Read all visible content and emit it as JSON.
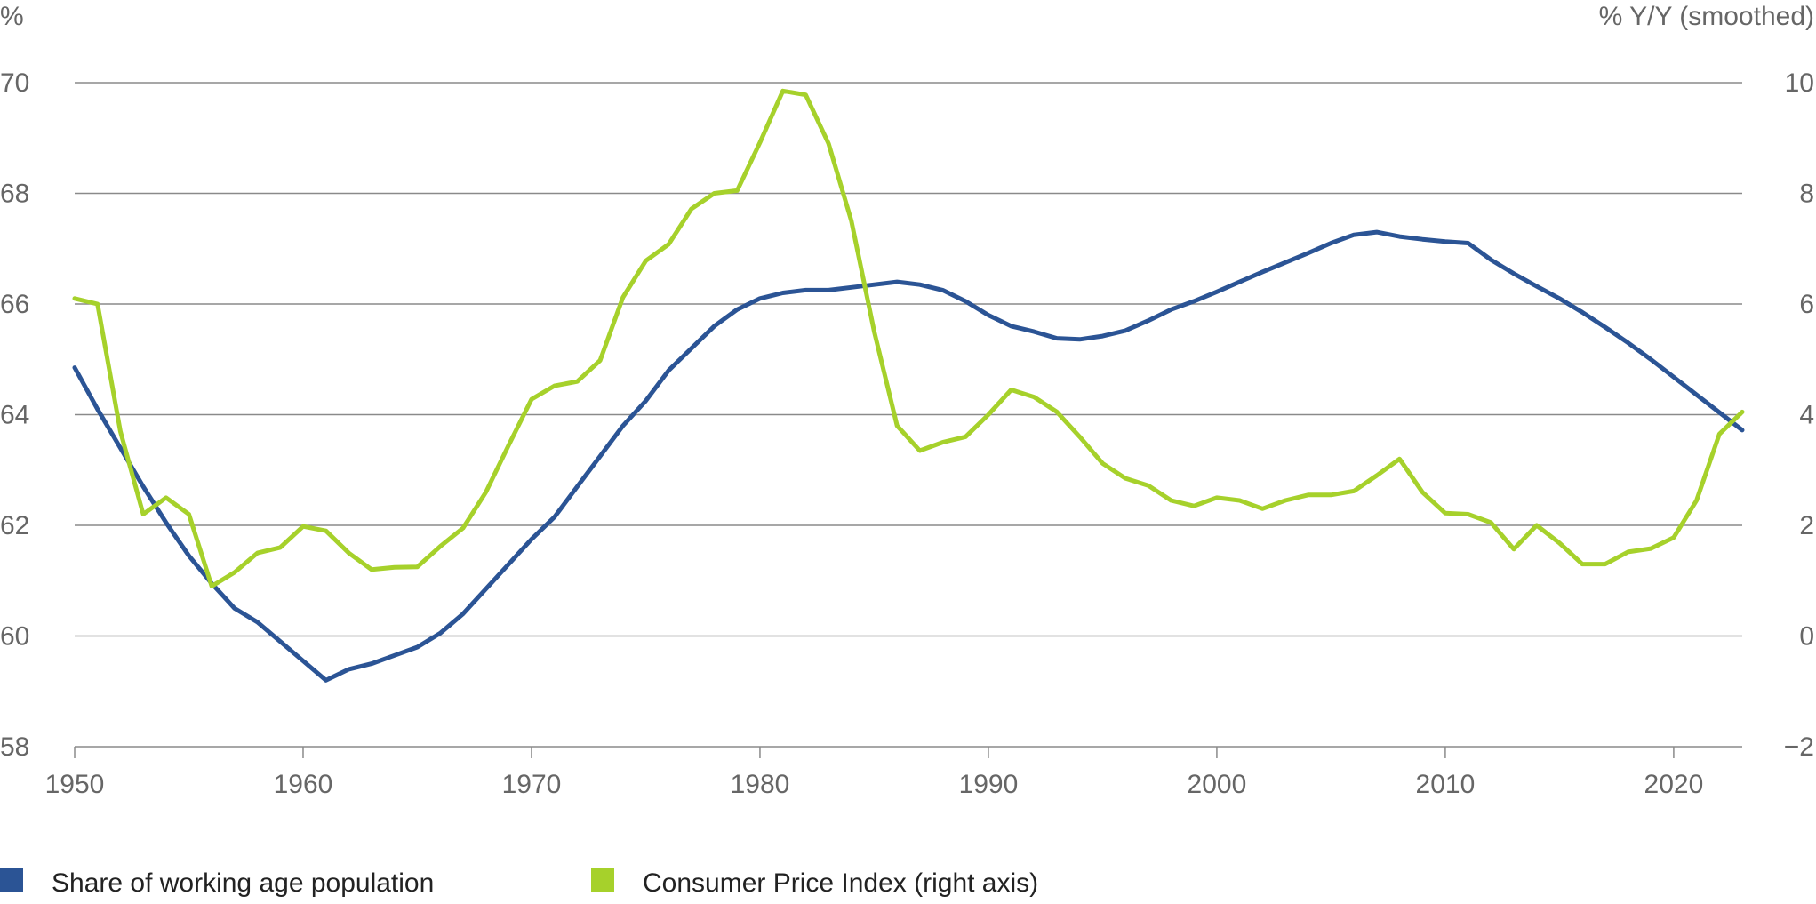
{
  "chart_data": {
    "type": "line",
    "title": "",
    "left_axis": {
      "unit_label": "%",
      "ylim": [
        58,
        70
      ],
      "ticks": [
        "58",
        "60",
        "62",
        "64",
        "66",
        "68",
        "70"
      ],
      "tick_values": [
        58,
        60,
        62,
        64,
        66,
        68,
        70
      ]
    },
    "right_axis": {
      "unit_label": "% Y/Y (smoothed)",
      "ylim": [
        -2,
        10
      ],
      "ticks": [
        "−2",
        "0",
        "2",
        "4",
        "6",
        "8",
        "10"
      ],
      "tick_values": [
        -2,
        0,
        2,
        4,
        6,
        8,
        10
      ]
    },
    "x_axis": {
      "xlim": [
        1950,
        2023
      ],
      "ticks": [
        "1950",
        "1960",
        "1970",
        "1980",
        "1990",
        "2000",
        "2010",
        "2020"
      ],
      "tick_values": [
        1950,
        1960,
        1970,
        1980,
        1990,
        2000,
        2010,
        2020
      ]
    },
    "grid": true,
    "legend_position": "bottom-left",
    "series": [
      {
        "name": "Share of working age population",
        "axis": "left",
        "color": "#2b5495",
        "x": [
          1950,
          1951,
          1952,
          1953,
          1954,
          1955,
          1956,
          1957,
          1958,
          1959,
          1960,
          1961,
          1962,
          1963,
          1964,
          1965,
          1966,
          1967,
          1968,
          1969,
          1970,
          1971,
          1972,
          1973,
          1974,
          1975,
          1976,
          1977,
          1978,
          1979,
          1980,
          1981,
          1982,
          1983,
          1984,
          1985,
          1986,
          1987,
          1988,
          1989,
          1990,
          1991,
          1992,
          1993,
          1994,
          1995,
          1996,
          1997,
          1998,
          1999,
          2000,
          2001,
          2002,
          2003,
          2004,
          2005,
          2006,
          2007,
          2008,
          2009,
          2010,
          2011,
          2012,
          2013,
          2014,
          2015,
          2016,
          2017,
          2018,
          2019,
          2020,
          2021,
          2022,
          2023
        ],
        "values": [
          64.85,
          64.1,
          63.4,
          62.7,
          62.05,
          61.45,
          60.95,
          60.5,
          60.25,
          59.9,
          59.55,
          59.2,
          59.4,
          59.5,
          59.65,
          59.8,
          60.05,
          60.4,
          60.85,
          61.3,
          61.75,
          62.15,
          62.7,
          63.25,
          63.8,
          64.25,
          64.8,
          65.2,
          65.6,
          65.9,
          66.1,
          66.2,
          66.25,
          66.25,
          66.3,
          66.35,
          66.4,
          66.35,
          66.25,
          66.05,
          65.8,
          65.6,
          65.5,
          65.38,
          65.36,
          65.42,
          65.52,
          65.7,
          65.9,
          66.05,
          66.22,
          66.4,
          66.58,
          66.75,
          66.92,
          67.1,
          67.25,
          67.3,
          67.22,
          67.17,
          67.13,
          67.1,
          66.8,
          66.55,
          66.32,
          66.1,
          65.85,
          65.58,
          65.3,
          65.0,
          64.68,
          64.36,
          64.04,
          63.72
        ]
      },
      {
        "name": "Consumer Price Index (right axis)",
        "axis": "right",
        "color": "#a6d12b",
        "x": [
          1950,
          1951,
          1952,
          1953,
          1954,
          1955,
          1956,
          1957,
          1958,
          1959,
          1960,
          1961,
          1962,
          1963,
          1964,
          1965,
          1966,
          1967,
          1968,
          1969,
          1970,
          1971,
          1972,
          1973,
          1974,
          1975,
          1976,
          1977,
          1978,
          1979,
          1980,
          1981,
          1982,
          1983,
          1984,
          1985,
          1986,
          1987,
          1988,
          1989,
          1990,
          1991,
          1992,
          1993,
          1994,
          1995,
          1996,
          1997,
          1998,
          1999,
          2000,
          2001,
          2002,
          2003,
          2004,
          2005,
          2006,
          2007,
          2008,
          2009,
          2010,
          2011,
          2012,
          2013,
          2014,
          2015,
          2016,
          2017,
          2018,
          2019,
          2020,
          2021,
          2022,
          2023
        ],
        "values": [
          6.1,
          6.0,
          3.7,
          2.2,
          2.5,
          2.2,
          0.9,
          1.15,
          1.5,
          1.6,
          1.98,
          1.9,
          1.5,
          1.2,
          1.24,
          1.25,
          1.62,
          1.95,
          2.6,
          3.45,
          4.28,
          4.52,
          4.6,
          4.98,
          6.12,
          6.78,
          7.08,
          7.72,
          8.0,
          8.05,
          8.92,
          9.85,
          9.78,
          8.9,
          7.5,
          5.5,
          3.8,
          3.35,
          3.5,
          3.6,
          4.0,
          4.45,
          4.32,
          4.05,
          3.6,
          3.12,
          2.85,
          2.72,
          2.45,
          2.35,
          2.5,
          2.45,
          2.3,
          2.45,
          2.55,
          2.55,
          2.62,
          2.9,
          3.2,
          2.6,
          2.22,
          2.2,
          2.05,
          1.57,
          2.0,
          1.68,
          1.3,
          1.3,
          1.52,
          1.58,
          1.78,
          2.45,
          3.65,
          4.05
        ]
      }
    ]
  }
}
